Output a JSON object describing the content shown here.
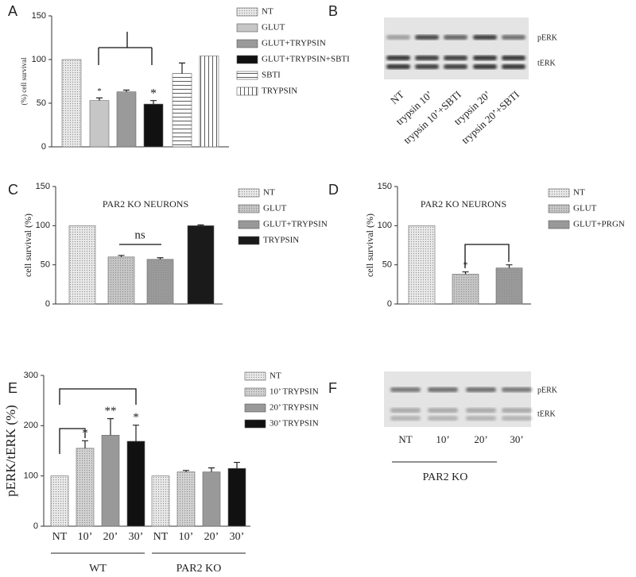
{
  "chart_data": [
    {
      "type": "bar",
      "panel": "A",
      "ylabel": "(%) cell survival",
      "categories": [
        "NT",
        "GLUT",
        "GLUT+TRYPSIN",
        "GLUT+TRYPSIN+SBTI",
        "SBTI",
        "TRYPSIN"
      ],
      "values": [
        100,
        53,
        63,
        49,
        84,
        104
      ],
      "errors": [
        null,
        3,
        2,
        4,
        12,
        null
      ],
      "colors": [
        "#e8e8e8",
        "#c6c6c6",
        "#9a9a9a",
        "#111111",
        "#ffffff",
        "#ffffff"
      ],
      "patterns": [
        "dots",
        "solid",
        "solid",
        "solid",
        "hlines",
        "vlines"
      ],
      "ylim": [
        0,
        150
      ],
      "yticks": [
        0,
        50,
        100,
        150
      ],
      "annotations": [
        "*",
        "*"
      ],
      "legend": "right"
    },
    {
      "type": "bar",
      "panel": "C",
      "title": "PAR2 KO NEURONS",
      "ylabel": "cell survival (%)",
      "categories": [
        "NT",
        "GLUT",
        "GLUT+TRYPSIN",
        "TRYPSIN"
      ],
      "values": [
        100,
        60,
        57,
        100
      ],
      "errors": [
        null,
        2,
        2,
        1
      ],
      "colors": [
        "#e8e8e8",
        "#c6c6c6",
        "#9a9a9a",
        "#1a1a1a"
      ],
      "patterns": [
        "dots",
        "dots",
        "dots",
        "solid"
      ],
      "ylim": [
        0,
        150
      ],
      "yticks": [
        0,
        50,
        100,
        150
      ],
      "annotations": [
        "ns"
      ],
      "legend": "right"
    },
    {
      "type": "bar",
      "panel": "D",
      "title": "PAR2 KO NEURONS",
      "ylabel": "cell survival (%)",
      "categories": [
        "NT",
        "GLUT",
        "GLUT+PRGN"
      ],
      "values": [
        100,
        38,
        46
      ],
      "errors": [
        null,
        3,
        4
      ],
      "colors": [
        "#e8e8e8",
        "#c6c6c6",
        "#9a9a9a"
      ],
      "patterns": [
        "dots",
        "dots",
        "dots"
      ],
      "ylim": [
        0,
        150
      ],
      "yticks": [
        0,
        50,
        100,
        150
      ],
      "annotations": [
        "*"
      ],
      "legend": "right"
    },
    {
      "type": "grouped",
      "panel": "E",
      "ylabel": "pERK/tERK (%)",
      "categories": [
        "WT",
        "PAR2 KO"
      ],
      "bar_labels": [
        "NT",
        "10’",
        "20’",
        "30’"
      ],
      "series": [
        {
          "name": "NT",
          "color": "#e8e8e8",
          "pattern": "dots",
          "values": [
            100,
            100
          ],
          "errors": [
            null,
            null
          ]
        },
        {
          "name": "10’ TRYPSIN",
          "color": "#d2d2d2",
          "pattern": "dots",
          "values": [
            155,
            108
          ],
          "errors": [
            15,
            3
          ]
        },
        {
          "name": "20’ TRYPSIN",
          "color": "#999999",
          "pattern": "solid",
          "values": [
            181,
            108
          ],
          "errors": [
            33,
            8
          ]
        },
        {
          "name": "30’ TRYPSIN",
          "color": "#111111",
          "pattern": "solid",
          "values": [
            169,
            115
          ],
          "errors": [
            32,
            12
          ]
        }
      ],
      "ylim": [
        0,
        300
      ],
      "yticks": [
        0,
        100,
        200,
        300
      ],
      "annotations": [
        "*",
        "**",
        "*"
      ],
      "legend": "right"
    }
  ],
  "blots": [
    {
      "panel": "B",
      "rows": [
        "pERK",
        "tERK"
      ],
      "lanes": [
        "NT",
        "trypsin 10’",
        "trypsin 10’+SBTI",
        "trypsin 20’",
        "trypsin 20’+SBTI"
      ]
    },
    {
      "panel": "F",
      "rows": [
        "pERK",
        "tERK"
      ],
      "lanes": [
        "NT",
        "10’",
        "20’",
        "30’"
      ],
      "group": "PAR2 KO"
    }
  ]
}
